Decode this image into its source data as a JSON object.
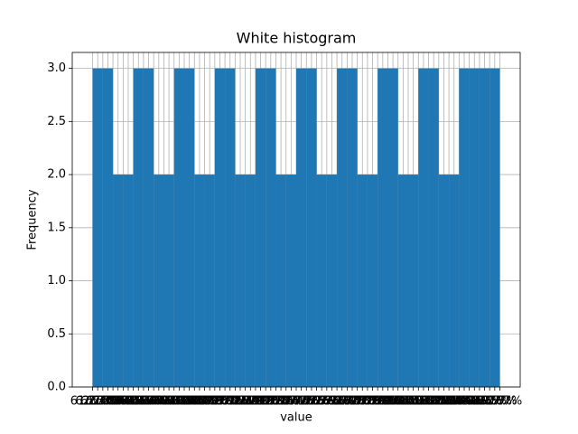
{
  "chart_data": {
    "type": "histogram",
    "title": "White histogram",
    "x_label": "value",
    "y_label": "Frequency",
    "bins": [
      0,
      2,
      4,
      6,
      8,
      10,
      12,
      14,
      16,
      18,
      20,
      22,
      24,
      26,
      28,
      30,
      32,
      34,
      36,
      38,
      40,
      42,
      44,
      46,
      48,
      50,
      52,
      54,
      56,
      58,
      60,
      62,
      64,
      66,
      68,
      70,
      72,
      74,
      76,
      78,
      80
    ],
    "values": [
      3,
      3,
      2,
      2,
      3,
      3,
      2,
      2,
      3,
      3,
      2,
      2,
      3,
      3,
      2,
      2,
      3,
      3,
      2,
      2,
      3,
      3,
      2,
      2,
      3,
      3,
      2,
      2,
      3,
      3,
      2,
      2,
      3,
      3,
      2,
      2,
      3,
      3,
      3,
      3
    ],
    "color": "#1f77b4",
    "grid": true,
    "xlim": [
      -4,
      84
    ],
    "ylim": [
      0,
      3.15
    ],
    "yticks": [
      {
        "value": 0,
        "label": "0.0"
      },
      {
        "value": 0.5,
        "label": "0.5"
      },
      {
        "value": 1,
        "label": "1.0"
      },
      {
        "value": 1.5,
        "label": "1.5"
      },
      {
        "value": 2,
        "label": "2.0"
      },
      {
        "value": 2.5,
        "label": "2.5"
      },
      {
        "value": 3,
        "label": "3.0"
      }
    ],
    "xticks": [
      {
        "value": 0,
        "label": "61.87%"
      },
      {
        "value": 1,
        "label": "62.17%"
      },
      {
        "value": 2,
        "label": "62.47%"
      },
      {
        "value": 3,
        "label": "62.77%"
      },
      {
        "value": 4,
        "label": "63.07%"
      },
      {
        "value": 5,
        "label": "63.37%"
      },
      {
        "value": 6,
        "label": "63.67%"
      },
      {
        "value": 7,
        "label": "63.97%"
      },
      {
        "value": 8,
        "label": "64.27%"
      },
      {
        "value": 9,
        "label": "64.57%"
      },
      {
        "value": 10,
        "label": "64.87%"
      },
      {
        "value": 11,
        "label": "65.17%"
      },
      {
        "value": 12,
        "label": "65.47%"
      },
      {
        "value": 13,
        "label": "65.77%"
      },
      {
        "value": 14,
        "label": "66.07%"
      },
      {
        "value": 15,
        "label": "66.37%"
      },
      {
        "value": 16,
        "label": "66.67%"
      },
      {
        "value": 17,
        "label": "66.97%"
      },
      {
        "value": 18,
        "label": "67.27%"
      },
      {
        "value": 19,
        "label": "67.57%"
      },
      {
        "value": 20,
        "label": "67.87%"
      },
      {
        "value": 21,
        "label": "68.17%"
      },
      {
        "value": 22,
        "label": "68.47%"
      },
      {
        "value": 23,
        "label": "68.77%"
      },
      {
        "value": 24,
        "label": "69.07%"
      },
      {
        "value": 25,
        "label": "69.37%"
      },
      {
        "value": 26,
        "label": "69.67%"
      },
      {
        "value": 27,
        "label": "69.97%"
      },
      {
        "value": 28,
        "label": "70.27%"
      },
      {
        "value": 29,
        "label": "70.57%"
      },
      {
        "value": 30,
        "label": "70.87%"
      },
      {
        "value": 31,
        "label": "71.17%"
      },
      {
        "value": 32,
        "label": "71.47%"
      },
      {
        "value": 33,
        "label": "71.77%"
      },
      {
        "value": 34,
        "label": "72.07%"
      },
      {
        "value": 35,
        "label": "72.37%"
      },
      {
        "value": 36,
        "label": "72.67%"
      },
      {
        "value": 37,
        "label": "72.97%"
      },
      {
        "value": 38,
        "label": "73.27%"
      },
      {
        "value": 39,
        "label": "73.57%"
      },
      {
        "value": 40,
        "label": "73.87%"
      },
      {
        "value": 41,
        "label": "74.17%"
      },
      {
        "value": 42,
        "label": "74.47%"
      },
      {
        "value": 43,
        "label": "74.77%"
      },
      {
        "value": 44,
        "label": "75.07%"
      },
      {
        "value": 45,
        "label": "75.37%"
      },
      {
        "value": 46,
        "label": "75.67%"
      },
      {
        "value": 47,
        "label": "75.97%"
      },
      {
        "value": 48,
        "label": "76.27%"
      },
      {
        "value": 49,
        "label": "76.57%"
      },
      {
        "value": 50,
        "label": "76.87%"
      },
      {
        "value": 51,
        "label": "77.17%"
      },
      {
        "value": 52,
        "label": "77.47%"
      },
      {
        "value": 53,
        "label": "77.77%"
      },
      {
        "value": 54,
        "label": "78.07%"
      },
      {
        "value": 55,
        "label": "78.37%"
      },
      {
        "value": 56,
        "label": "78.67%"
      },
      {
        "value": 57,
        "label": "78.97%"
      },
      {
        "value": 58,
        "label": "79.27%"
      },
      {
        "value": 59,
        "label": "79.57%"
      },
      {
        "value": 60,
        "label": "79.87%"
      },
      {
        "value": 61,
        "label": "80.17%"
      },
      {
        "value": 62,
        "label": "80.47%"
      },
      {
        "value": 63,
        "label": "80.77%"
      },
      {
        "value": 64,
        "label": "81.07%"
      },
      {
        "value": 65,
        "label": "81.37%"
      },
      {
        "value": 66,
        "label": "81.67%"
      },
      {
        "value": 67,
        "label": "81.97%"
      },
      {
        "value": 68,
        "label": "82.27%"
      },
      {
        "value": 69,
        "label": "82.57%"
      },
      {
        "value": 70,
        "label": "82.87%"
      },
      {
        "value": 71,
        "label": "83.17%"
      },
      {
        "value": 72,
        "label": "83.47%"
      },
      {
        "value": 73,
        "label": "83.77%"
      },
      {
        "value": 74,
        "label": "84.07%"
      },
      {
        "value": 75,
        "label": "84.37%"
      },
      {
        "value": 76,
        "label": "84.67%"
      },
      {
        "value": 77,
        "label": "84.97%"
      },
      {
        "value": 78,
        "label": "85.27%"
      },
      {
        "value": 79,
        "label": "85.57%"
      },
      {
        "value": 80,
        "label": "85.87%"
      }
    ]
  }
}
